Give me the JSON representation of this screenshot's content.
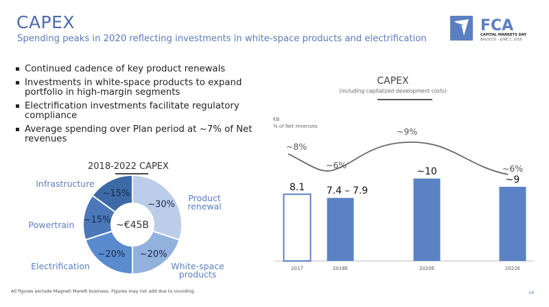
{
  "header": {
    "title": "CAPEX",
    "subtitle": "Spending peaks in 2020 reflecting investments in white-space products and electrification"
  },
  "logo": {
    "brand": "FCA",
    "event": "CAPITAL MARKETS DAY",
    "location_date": "BALOCCO – JUNE 1, 2018",
    "icon": "fca-arrow-logo-icon",
    "color": "#5b7fc2"
  },
  "bullets": [
    "Continued cadence of key product renewals",
    "Investments in white-space products to expand portfolio in high-margin segments",
    "Electrification investments facilitate regulatory compliance",
    "Average spending over Plan period at ~7% of Net revenues"
  ],
  "footnote": "All figures exclude Magneti Marelli business. Figures may not add due to rounding.",
  "page_number": "14",
  "chart_data": [
    {
      "type": "pie",
      "title": "2018-2022 CAPEX",
      "center_label": "~€45B",
      "slices": [
        {
          "name": "Product renewal",
          "value": 30,
          "label": "~30%",
          "color": "#bccde9"
        },
        {
          "name": "White-space products",
          "value": 20,
          "label": "~20%",
          "color": "#93b1dd"
        },
        {
          "name": "Electrification",
          "value": 20,
          "label": "~20%",
          "color": "#5b8bcf"
        },
        {
          "name": "Powertrain",
          "value": 15,
          "label": "~15%",
          "color": "#4a78b8"
        },
        {
          "name": "Infrastructure",
          "value": 15,
          "label": "~15%",
          "color": "#3d6aa6"
        }
      ]
    },
    {
      "type": "bar",
      "title": "CAPEX",
      "subtitle": "(including capitalized development costs)",
      "ylabel": "€B",
      "secondary_label": "% of Net revenues",
      "categories": [
        "2017",
        "2018E",
        "2020E",
        "2022E"
      ],
      "values": [
        8.1,
        7.65,
        10,
        9
      ],
      "value_labels": [
        "8.1",
        "7.4 – 7.9",
        "~10",
        "~9"
      ],
      "bar_styles": [
        "outline",
        "filled",
        "filled",
        "filled"
      ],
      "bar_color": "#5b82c4",
      "ylim": [
        0,
        11
      ],
      "overlay_line": {
        "name": "% of Net revenues",
        "values": [
          8,
          6,
          9,
          6
        ],
        "labels": [
          "~8%",
          "~6%",
          "~9%",
          "~6%"
        ],
        "color": "#666666"
      }
    }
  ]
}
